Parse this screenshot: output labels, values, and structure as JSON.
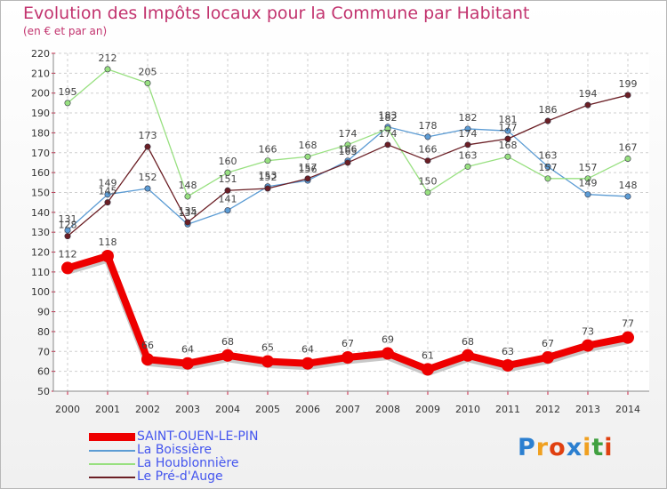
{
  "chart_data": {
    "type": "line",
    "title": "Evolution des Impôts locaux pour la Commune par Habitant",
    "subtitle": "(en € et par an)",
    "x": [
      "2000",
      "2001",
      "2002",
      "2003",
      "2004",
      "2005",
      "2006",
      "2007",
      "2008",
      "2009",
      "2010",
      "2011",
      "2012",
      "2013",
      "2014"
    ],
    "ylim": [
      50,
      220
    ],
    "yticks": [
      50,
      60,
      70,
      80,
      90,
      100,
      110,
      120,
      130,
      140,
      150,
      160,
      170,
      180,
      190,
      200,
      210,
      220
    ],
    "grid": true,
    "legend_position": "bottom-left",
    "series": [
      {
        "name": "SAINT-OUEN-LE-PIN",
        "color": "#ee0000",
        "values": [
          112,
          118,
          66,
          64,
          68,
          65,
          64,
          67,
          69,
          61,
          68,
          63,
          67,
          73,
          77
        ]
      },
      {
        "name": "La Boissière",
        "color": "#5c9cd4",
        "values": [
          131,
          149,
          152,
          134,
          141,
          153,
          156,
          166,
          183,
          178,
          182,
          181,
          163,
          149,
          148
        ]
      },
      {
        "name": "La Houblonnière",
        "color": "#98e080",
        "values": [
          195,
          212,
          205,
          148,
          160,
          166,
          168,
          174,
          182,
          150,
          163,
          168,
          157,
          157,
          167
        ]
      },
      {
        "name": "Le Pré-d'Auge",
        "color": "#6b1f25",
        "values": [
          128,
          145,
          173,
          135,
          151,
          152,
          157,
          165,
          174,
          166,
          174,
          177,
          186,
          194,
          199
        ]
      }
    ]
  },
  "logo": {
    "letters": [
      "P",
      "r",
      "o",
      "x",
      "i",
      "t",
      "i"
    ],
    "colors": [
      "#2b7fd0",
      "#f0a020",
      "#e04010",
      "#2b7fd0",
      "#f0a020",
      "#40a040",
      "#e04010"
    ]
  }
}
